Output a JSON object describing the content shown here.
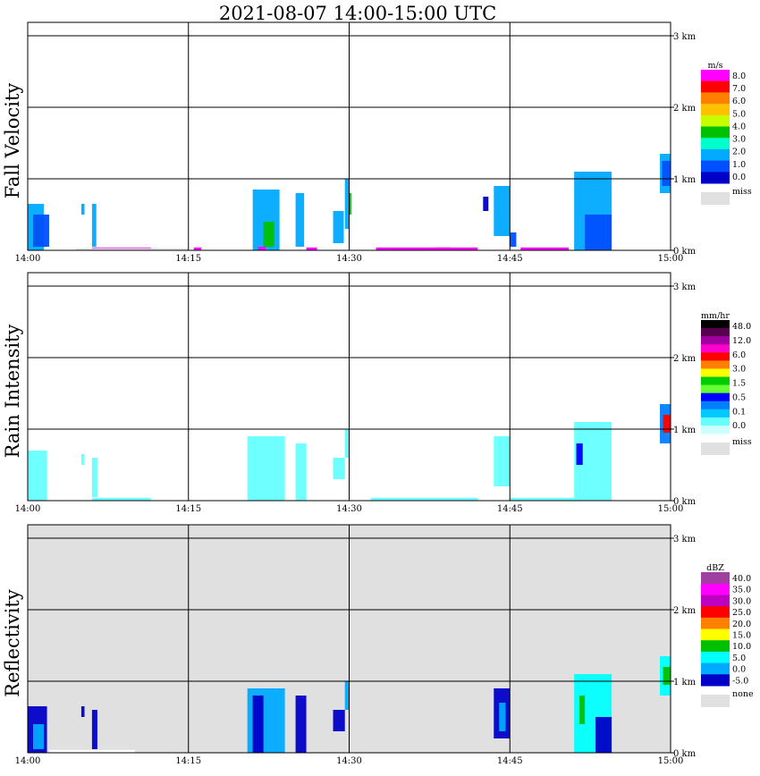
{
  "title": "2021-08-07   14:00-15:00 UTC",
  "chart_data": [
    {
      "type": "heatmap",
      "panel": "Fall Velocity",
      "background": "#ffffff",
      "x_ticks": [
        "14:00",
        "14:15",
        "14:30",
        "14:45",
        "15:00"
      ],
      "y_ticks": [
        "0 km",
        "1 km",
        "2 km",
        "3 km"
      ],
      "ylim_km": [
        0,
        3.2
      ],
      "legend": {
        "unit": "m/s",
        "labels": [
          "8.0",
          "7.0",
          "6.0",
          "5.0",
          "4.0",
          "3.0",
          "2.0",
          "1.0",
          "0.0"
        ],
        "miss_label": "miss",
        "colors": [
          "#ff00ff",
          "#ff0000",
          "#ff7f00",
          "#ffc000",
          "#c8ff00",
          "#00c000",
          "#00ffcc",
          "#00aaff",
          "#0050ff",
          "#0000c8"
        ]
      },
      "echoes": [
        {
          "t_min": [
            0.0,
            1.5
          ],
          "h_km": [
            0.0,
            0.65
          ],
          "c": "#00aaff"
        },
        {
          "t_min": [
            0.5,
            1.3
          ],
          "h_km": [
            0.05,
            0.45
          ],
          "c": "#00c000"
        },
        {
          "t_min": [
            5.0,
            5.3
          ],
          "h_km": [
            0.5,
            0.65
          ],
          "c": "#00aaff"
        },
        {
          "t_min": [
            6.0,
            6.4
          ],
          "h_km": [
            0.05,
            0.65
          ],
          "c": "#00aaff"
        },
        {
          "t_min": [
            6.0,
            11.5
          ],
          "h_km": [
            0.0,
            0.04
          ],
          "c": "#ff00ff"
        },
        {
          "t_min": [
            0.5,
            2.0
          ],
          "h_km": [
            0.05,
            0.5
          ],
          "c": "#0050ff"
        },
        {
          "t_min": [
            4.5,
            15.0
          ],
          "h_km": [
            0.0,
            0.03
          ],
          "c": "#e4e4e4"
        },
        {
          "t_min": [
            15.5,
            16.2
          ],
          "h_km": [
            0.0,
            0.04
          ],
          "c": "#ff00ff"
        },
        {
          "t_min": [
            21.0,
            23.5
          ],
          "h_km": [
            0.0,
            0.85
          ],
          "c": "#00aaff"
        },
        {
          "t_min": [
            22.0,
            23.0
          ],
          "h_km": [
            0.05,
            0.4
          ],
          "c": "#00c000"
        },
        {
          "t_min": [
            21.5,
            22.2
          ],
          "h_km": [
            0.0,
            0.05
          ],
          "c": "#ff00ff"
        },
        {
          "t_min": [
            25.0,
            25.8
          ],
          "h_km": [
            0.05,
            0.8
          ],
          "c": "#00aaff"
        },
        {
          "t_min": [
            26.0,
            27.0
          ],
          "h_km": [
            0.0,
            0.04
          ],
          "c": "#ff00ff"
        },
        {
          "t_min": [
            28.5,
            29.5
          ],
          "h_km": [
            0.1,
            0.55
          ],
          "c": "#00aaff"
        },
        {
          "t_min": [
            29.6,
            30.0
          ],
          "h_km": [
            0.3,
            1.0
          ],
          "c": "#00aaff"
        },
        {
          "t_min": [
            30.0,
            30.2
          ],
          "h_km": [
            0.5,
            0.8
          ],
          "c": "#00c000"
        },
        {
          "t_min": [
            32.5,
            42.0
          ],
          "h_km": [
            0.0,
            0.04
          ],
          "c": "#ff00ff"
        },
        {
          "t_min": [
            38.0,
            39.5
          ],
          "h_km": [
            0.0,
            0.04
          ],
          "c": "#ff00ff"
        },
        {
          "t_min": [
            43.5,
            45.0
          ],
          "h_km": [
            0.2,
            0.9
          ],
          "c": "#00aaff"
        },
        {
          "t_min": [
            42.5,
            43.0
          ],
          "h_km": [
            0.55,
            0.75
          ],
          "c": "#0000c8"
        },
        {
          "t_min": [
            45.0,
            45.6
          ],
          "h_km": [
            0.05,
            0.25
          ],
          "c": "#0050ff"
        },
        {
          "t_min": [
            46.0,
            50.5
          ],
          "h_km": [
            0.0,
            0.04
          ],
          "c": "#ff00ff"
        },
        {
          "t_min": [
            51.0,
            54.5
          ],
          "h_km": [
            0.0,
            1.1
          ],
          "c": "#00aaff"
        },
        {
          "t_min": [
            52.0,
            54.5
          ],
          "h_km": [
            0.0,
            0.5
          ],
          "c": "#0050ff"
        },
        {
          "t_min": [
            59.0,
            60.0
          ],
          "h_km": [
            0.8,
            1.35
          ],
          "c": "#00aaff"
        },
        {
          "t_min": [
            59.2,
            60.0
          ],
          "h_km": [
            0.9,
            1.25
          ],
          "c": "#0050ff"
        }
      ]
    },
    {
      "type": "heatmap",
      "panel": "Rain Intensity",
      "background": "#ffffff",
      "x_ticks": [
        "14:00",
        "14:15",
        "14:30",
        "14:45",
        "15:00"
      ],
      "y_ticks": [
        "0 km",
        "1 km",
        "2 km",
        "3 km"
      ],
      "ylim_km": [
        0,
        3.2
      ],
      "legend": {
        "unit": "mm/hr",
        "labels": [
          "48.0",
          "12.0",
          "6.0",
          "3.0",
          "1.5",
          "0.5",
          "0.1",
          "0.0"
        ],
        "miss_label": "miss",
        "colors": [
          "#000000",
          "#5a0050",
          "#a000a0",
          "#ff00cc",
          "#ff0000",
          "#ff7f00",
          "#ffff00",
          "#00cc00",
          "#66ff33",
          "#0000ff",
          "#0080ff",
          "#00c8ff",
          "#66ffff",
          "#ccffff"
        ]
      },
      "echoes": [
        {
          "t_min": [
            0.0,
            1.8
          ],
          "h_km": [
            0.0,
            0.7
          ],
          "c": "#66ffff"
        },
        {
          "t_min": [
            5.0,
            5.3
          ],
          "h_km": [
            0.5,
            0.65
          ],
          "c": "#66ffff"
        },
        {
          "t_min": [
            6.0,
            6.5
          ],
          "h_km": [
            0.05,
            0.6
          ],
          "c": "#66ffff"
        },
        {
          "t_min": [
            6.0,
            11.5
          ],
          "h_km": [
            0.0,
            0.04
          ],
          "c": "#66ffff"
        },
        {
          "t_min": [
            20.5,
            24.0
          ],
          "h_km": [
            0.0,
            0.9
          ],
          "c": "#66ffff"
        },
        {
          "t_min": [
            25.0,
            26.0
          ],
          "h_km": [
            0.0,
            0.8
          ],
          "c": "#66ffff"
        },
        {
          "t_min": [
            28.5,
            29.6
          ],
          "h_km": [
            0.3,
            0.6
          ],
          "c": "#66ffff"
        },
        {
          "t_min": [
            29.6,
            30.0
          ],
          "h_km": [
            0.6,
            1.0
          ],
          "c": "#66ffff"
        },
        {
          "t_min": [
            32.0,
            42.0
          ],
          "h_km": [
            0.0,
            0.04
          ],
          "c": "#66ffff"
        },
        {
          "t_min": [
            43.5,
            45.0
          ],
          "h_km": [
            0.2,
            0.9
          ],
          "c": "#66ffff"
        },
        {
          "t_min": [
            45.0,
            54.5
          ],
          "h_km": [
            0.0,
            0.04
          ],
          "c": "#66ffff"
        },
        {
          "t_min": [
            51.0,
            54.5
          ],
          "h_km": [
            0.0,
            1.1
          ],
          "c": "#66ffff"
        },
        {
          "t_min": [
            51.2,
            51.8
          ],
          "h_km": [
            0.5,
            0.8
          ],
          "c": "#0000ff"
        },
        {
          "t_min": [
            59.0,
            60.0
          ],
          "h_km": [
            0.8,
            1.35
          ],
          "c": "#0080ff"
        },
        {
          "t_min": [
            59.3,
            60.0
          ],
          "h_km": [
            0.95,
            1.2
          ],
          "c": "#ff0000"
        }
      ]
    },
    {
      "type": "heatmap",
      "panel": "Reflectivity",
      "background": "#e0e0e0",
      "x_ticks": [
        "14:00",
        "14:15",
        "14:30",
        "14:45",
        "15:00"
      ],
      "y_ticks": [
        "0 km",
        "1 km",
        "2 km",
        "3 km"
      ],
      "ylim_km": [
        0,
        3.2
      ],
      "legend": {
        "unit": "dBZ",
        "labels": [
          "40.0",
          "35.0",
          "30.0",
          "25.0",
          "20.0",
          "15.0",
          "10.0",
          "5.0",
          "0.0",
          "-5.0"
        ],
        "miss_label": "none",
        "colors": [
          "#a040a0",
          "#ff00ff",
          "#c000c0",
          "#ff0000",
          "#ff7f00",
          "#ffff00",
          "#00c000",
          "#00ffff",
          "#00aaff",
          "#0000c8"
        ]
      },
      "echoes": [
        {
          "t_min": [
            0.0,
            1.8
          ],
          "h_km": [
            0.0,
            0.65
          ],
          "c": "#0000c8"
        },
        {
          "t_min": [
            0.5,
            1.5
          ],
          "h_km": [
            0.05,
            0.4
          ],
          "c": "#00aaff"
        },
        {
          "t_min": [
            5.0,
            5.3
          ],
          "h_km": [
            0.5,
            0.65
          ],
          "c": "#0000c8"
        },
        {
          "t_min": [
            6.0,
            6.5
          ],
          "h_km": [
            0.05,
            0.6
          ],
          "c": "#0000c8"
        },
        {
          "t_min": [
            2.0,
            10.0
          ],
          "h_km": [
            0.0,
            0.04
          ],
          "c": "#ffffff"
        },
        {
          "t_min": [
            20.5,
            24.0
          ],
          "h_km": [
            0.0,
            0.9
          ],
          "c": "#00aaff"
        },
        {
          "t_min": [
            21.0,
            22.0
          ],
          "h_km": [
            0.0,
            0.8
          ],
          "c": "#0000c8"
        },
        {
          "t_min": [
            25.0,
            26.0
          ],
          "h_km": [
            0.0,
            0.8
          ],
          "c": "#0000c8"
        },
        {
          "t_min": [
            28.5,
            29.6
          ],
          "h_km": [
            0.3,
            0.6
          ],
          "c": "#0000c8"
        },
        {
          "t_min": [
            29.6,
            30.0
          ],
          "h_km": [
            0.6,
            1.0
          ],
          "c": "#00aaff"
        },
        {
          "t_min": [
            43.5,
            45.0
          ],
          "h_km": [
            0.2,
            0.9
          ],
          "c": "#0000c8"
        },
        {
          "t_min": [
            44.0,
            44.6
          ],
          "h_km": [
            0.3,
            0.7
          ],
          "c": "#00aaff"
        },
        {
          "t_min": [
            51.0,
            54.5
          ],
          "h_km": [
            0.0,
            1.1
          ],
          "c": "#00ffff"
        },
        {
          "t_min": [
            51.5,
            52.0
          ],
          "h_km": [
            0.4,
            0.8
          ],
          "c": "#00c000"
        },
        {
          "t_min": [
            53.0,
            54.5
          ],
          "h_km": [
            0.0,
            0.5
          ],
          "c": "#0000c8"
        },
        {
          "t_min": [
            59.0,
            60.0
          ],
          "h_km": [
            0.8,
            1.35
          ],
          "c": "#00ffff"
        },
        {
          "t_min": [
            59.3,
            60.0
          ],
          "h_km": [
            0.95,
            1.2
          ],
          "c": "#00c000"
        }
      ]
    }
  ]
}
